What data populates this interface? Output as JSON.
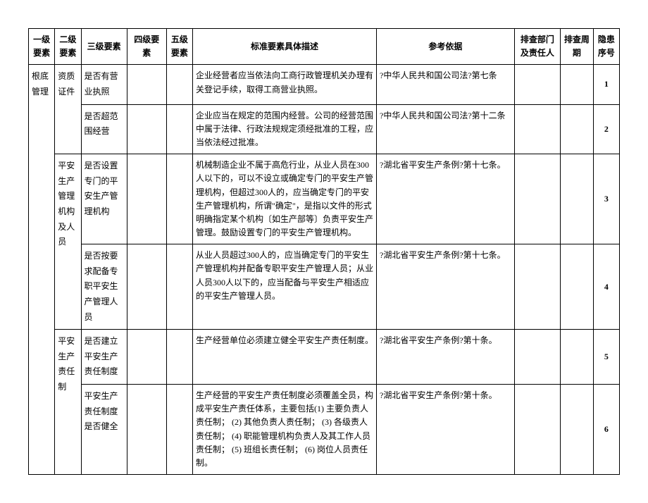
{
  "headers": {
    "l1": "一级要素",
    "l2": "二级要素",
    "l3": "三级要素",
    "l4": "四级要素",
    "l5": "五级要素",
    "desc": "标准要素具体描述",
    "ref": "参考依据",
    "dept": "排查部门及责任人",
    "cycle": "排查周期",
    "num": "隐患序号"
  },
  "l1": "根底管理",
  "l2_1": "资质证件",
  "l2_2": "平安生产管理机构及人员",
  "l2_3": "平安生产责任制",
  "rows": [
    {
      "l3": "是否有营业执照",
      "desc": "企业经营者应当依法向工商行政管理机关办理有关登记手续，取得工商营业执照。",
      "ref": "?中华人民共和国公司法?第七条",
      "num": "1"
    },
    {
      "l3": "是否超范围经营",
      "desc": "企业应当在规定的范围内经营。公司的经营范围中属于法律、行政法规规定须经批准的工程，应当依法经过批准。",
      "ref": "?中华人民共和国公司法?第十二条",
      "num": "2"
    },
    {
      "l3": "是否设置专门的平安生产管理机构",
      "desc": "机械制造企业不属于高危行业，从业人员在300人以下的，可以不设立或确定专门的平安生产管理机构，但超过300人的，应当确定专门的平安生产管理机构，所谓\"确定\"，是指以文件的形式明确指定某个机构〔如生产部等〕负责平安生产管理。鼓励设置专门的平安生产管理机构。",
      "ref": "?湖北省平安生产条例?第十七条。",
      "num": "3"
    },
    {
      "l3": "是否按要求配备专职平安生产管理人员",
      "desc": "从业人员超过300人的，应当确定专门的平安生产管理机构并配备专职平安生产管理人员；从业人员300人以下的，应当配备与平安生产相适应的平安生产管理人员。",
      "ref": "?湖北省平安生产条例?第十七条。",
      "num": "4"
    },
    {
      "l3": "是否建立平安生产责任制度",
      "desc": "生产经营单位必须建立健全平安生产责任制度。",
      "ref": "?湖北省平安生产条例?第十条。",
      "num": "5"
    },
    {
      "l3": "平安生产责任制度是否健全",
      "desc": "生产经营的平安生产责任制度必须覆盖全员，构成平安生产责任体系，主要包括(1) 主要负责人责任制； (2) 其他负责人责任制； (3) 各级责人责任制； (4) 职能管理机构负责人及其工作人员责任制；  (5) 班组长责任制； (6) 岗位人员责任制。",
      "ref": "?湖北省平安生产条例?第十条。",
      "num": "6"
    }
  ]
}
